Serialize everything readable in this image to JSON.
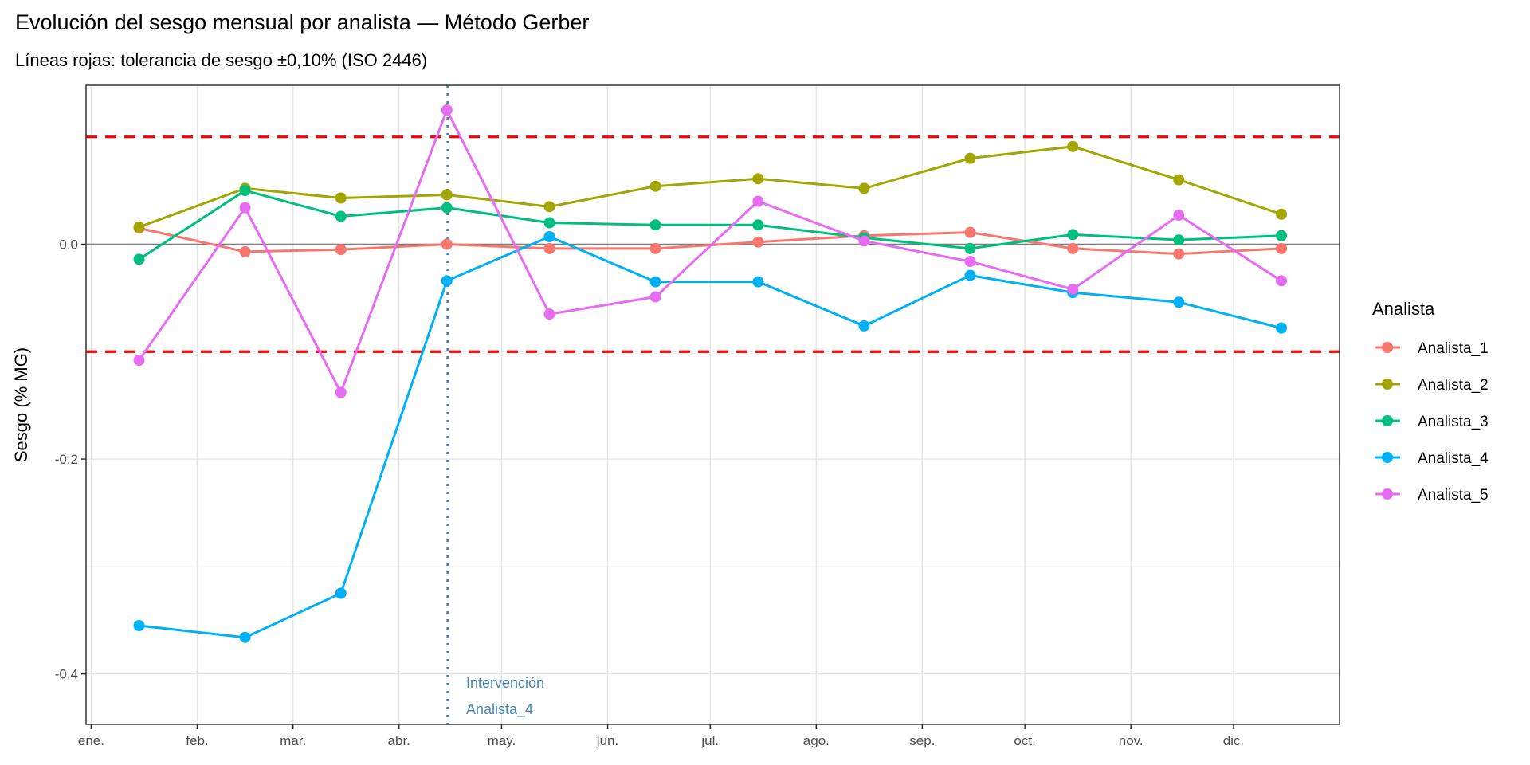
{
  "chart_data": {
    "type": "line",
    "title": "Evolución del sesgo mensual por analista — Método Gerber",
    "subtitle": "Líneas rojas: tolerancia de sesgo ±0,10% (ISO 2446)",
    "xlabel": "",
    "ylabel": "Sesgo (% MG)",
    "x_tick_labels": [
      "ene.",
      "feb.",
      "mar.",
      "abr.",
      "may.",
      "jun.",
      "jul.",
      "ago.",
      "sep.",
      "oct.",
      "nov.",
      "dic."
    ],
    "y_ticks": [
      0.0,
      -0.2,
      -0.4
    ],
    "y_tick_labels": [
      "0.0",
      "-0.2",
      "-0.4"
    ],
    "ylim": [
      -0.447,
      0.148
    ],
    "x_day_of_year": [
      14,
      45,
      73,
      104,
      134,
      165,
      195,
      226,
      257,
      287,
      318,
      348
    ],
    "grid": true,
    "legend": {
      "title": "Analista",
      "placement": "right"
    },
    "series": [
      {
        "name": "Analista_1",
        "color": "#F8766D",
        "values": [
          0.015,
          -0.007,
          -0.005,
          0.0,
          -0.004,
          -0.004,
          0.002,
          0.008,
          0.011,
          -0.004,
          -0.009,
          -0.004
        ]
      },
      {
        "name": "Analista_2",
        "color": "#A3A500",
        "values": [
          0.016,
          0.052,
          0.043,
          0.046,
          0.035,
          0.054,
          0.061,
          0.052,
          0.08,
          0.091,
          0.06,
          0.028
        ]
      },
      {
        "name": "Analista_3",
        "color": "#00BF7D",
        "values": [
          -0.014,
          0.05,
          0.026,
          0.034,
          0.02,
          0.018,
          0.018,
          0.006,
          -0.004,
          0.009,
          0.004,
          0.008
        ]
      },
      {
        "name": "Analista_4",
        "color": "#00B0F6",
        "values": [
          -0.355,
          -0.366,
          -0.325,
          -0.034,
          0.007,
          -0.035,
          -0.035,
          -0.076,
          -0.029,
          -0.045,
          -0.054,
          -0.078
        ]
      },
      {
        "name": "Analista_5",
        "color": "#E76BF3",
        "values": [
          -0.108,
          0.034,
          -0.138,
          0.125,
          -0.065,
          -0.049,
          0.04,
          0.003,
          -0.016,
          -0.042,
          0.027,
          -0.034
        ]
      }
    ],
    "reference_lines": [
      {
        "type": "hline",
        "value": 0.1,
        "color": "#FF0000",
        "style": "dashed"
      },
      {
        "type": "hline",
        "value": -0.1,
        "color": "#FF0000",
        "style": "dashed"
      },
      {
        "type": "hline",
        "value": 0.0,
        "color": "#7f7f7f",
        "style": "solid"
      },
      {
        "type": "vline",
        "day_of_year": 104,
        "color": "#4682B4",
        "style": "dotted"
      }
    ],
    "annotations": [
      {
        "text_line1": "Intervención",
        "text_line2": "Analista_4",
        "color": "#4682B4"
      }
    ]
  }
}
